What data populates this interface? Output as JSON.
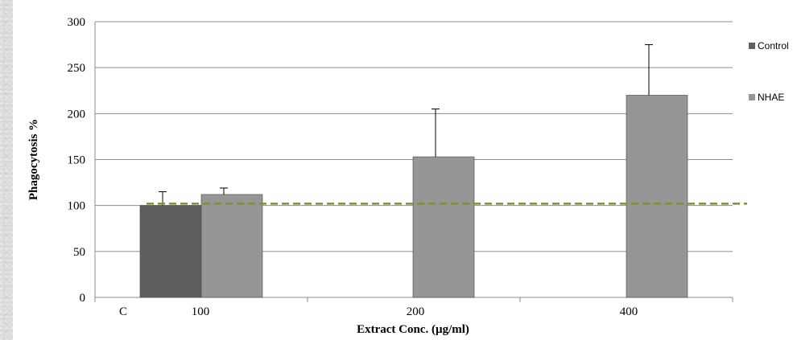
{
  "chart_data": {
    "type": "bar",
    "title": "",
    "xlabel": "Extract Conc. (µg/ml)",
    "ylabel": "Phagocytosis  %",
    "ylim": [
      0,
      300
    ],
    "yticks": [
      0,
      50,
      100,
      150,
      200,
      250,
      300
    ],
    "grid": true,
    "legend_position": "right",
    "categories": [
      "C",
      "100",
      "200",
      "400"
    ],
    "series": [
      {
        "name": "Control",
        "color": "#5f5f5f",
        "values": [
          100,
          null,
          null,
          null
        ],
        "errors": [
          15,
          null,
          null,
          null
        ]
      },
      {
        "name": "NHAE",
        "color": "#969696",
        "values": [
          null,
          112,
          153,
          220
        ],
        "errors": [
          null,
          7,
          52,
          55
        ]
      }
    ],
    "reference_line": {
      "y": 102,
      "style": "dashed",
      "color": "#77933c"
    }
  }
}
